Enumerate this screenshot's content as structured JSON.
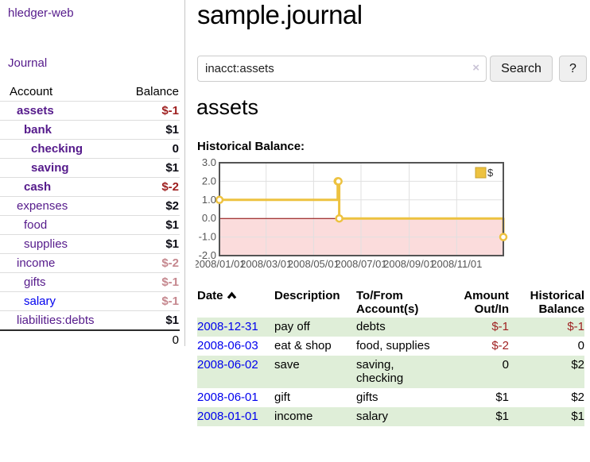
{
  "colors": {
    "purple": "#551A8B",
    "blue": "#0000EE",
    "negative_red": "#9E1F1F",
    "dimmed_red": "#C5878E",
    "stripe_green": "#DFEED8",
    "chart_line_yellow": "#EDC240",
    "chart_negative_fill": "#FBDCDC",
    "chart_zero_line": "#8B0000"
  },
  "sidebar": {
    "app_title": "hledger-web",
    "nav": {
      "journal_label": "Journal"
    },
    "accounts_table": {
      "account_header": "Account",
      "balance_header": "Balance",
      "rows": [
        {
          "name": "assets",
          "level": 1,
          "bold": true,
          "link_tone": "visited",
          "balance": "$-1",
          "balance_tone": "negative"
        },
        {
          "name": "bank",
          "level": 2,
          "bold": true,
          "link_tone": "visited",
          "balance": "$1",
          "balance_tone": "positive"
        },
        {
          "name": "checking",
          "level": 3,
          "bold": true,
          "link_tone": "visited",
          "balance": "0",
          "balance_tone": "positive"
        },
        {
          "name": "saving",
          "level": 3,
          "bold": true,
          "link_tone": "visited",
          "balance": "$1",
          "balance_tone": "positive"
        },
        {
          "name": "cash",
          "level": 2,
          "bold": true,
          "link_tone": "visited",
          "balance": "$-2",
          "balance_tone": "negative"
        },
        {
          "name": "expenses",
          "level": 1,
          "bold": false,
          "link_tone": "visited",
          "balance": "$2",
          "balance_tone": "positive"
        },
        {
          "name": "food",
          "level": 2,
          "bold": false,
          "link_tone": "visited",
          "balance": "$1",
          "balance_tone": "positive"
        },
        {
          "name": "supplies",
          "level": 2,
          "bold": false,
          "link_tone": "visited",
          "balance": "$1",
          "balance_tone": "positive"
        },
        {
          "name": "income",
          "level": 1,
          "bold": false,
          "link_tone": "visited",
          "balance": "$-2",
          "balance_tone": "dimmed"
        },
        {
          "name": "gifts",
          "level": 2,
          "bold": false,
          "link_tone": "visited",
          "balance": "$-1",
          "balance_tone": "dimmed"
        },
        {
          "name": "salary",
          "level": 2,
          "bold": false,
          "link_tone": "unvisited",
          "balance": "$-1",
          "balance_tone": "dimmed"
        },
        {
          "name": "liabilities:debts",
          "level": 1,
          "bold": false,
          "link_tone": "visited",
          "balance": "$1",
          "balance_tone": "positive"
        }
      ],
      "total": "0"
    }
  },
  "main": {
    "title": "sample.journal",
    "search": {
      "value": "inacct:assets",
      "clear_icon": "×",
      "button_label": "Search",
      "help_label": "?"
    },
    "account_heading": "assets",
    "chart_label": "Historical Balance:",
    "chart_data": {
      "type": "line",
      "step": true,
      "title": "Historical Balance:",
      "series": [
        {
          "name": "$",
          "color": "#EDC240",
          "points": [
            [
              "2008-01-01",
              1
            ],
            [
              "2008-06-01",
              2
            ],
            [
              "2008-06-02",
              2
            ],
            [
              "2008-06-03",
              0
            ],
            [
              "2008-12-31",
              -1
            ]
          ]
        }
      ],
      "xlim": [
        "2008-01-01",
        "2008-12-31"
      ],
      "ylim": [
        -2,
        3
      ],
      "yticks": [
        3,
        2,
        1,
        0,
        -1,
        -2
      ],
      "ytick_labels": [
        "3.0",
        "2.0",
        "1.0",
        "0.0",
        "-1.0",
        "-2.0"
      ],
      "xtick_labels": [
        "2008/01/01",
        "2008/03/01",
        "2008/05/01",
        "2008/07/01",
        "2008/09/01",
        "2008/11/01"
      ],
      "grid": true,
      "legend_label": "$",
      "legend_position": "top-right",
      "negative_region_fill": "#FBDCDC",
      "zero_line_color": "#8B0000"
    },
    "transactions": {
      "headers": {
        "date": "Date",
        "description": "Description",
        "accounts": "To/From Account(s)",
        "amount": "Amount Out/In",
        "balance": "Historical Balance"
      },
      "rows": [
        {
          "date": "2008-12-31",
          "description": "pay off",
          "accounts": "debts",
          "amount": "$-1",
          "amount_tone": "negative",
          "balance": "$-1",
          "balance_tone": "negative",
          "shaded": true
        },
        {
          "date": "2008-06-03",
          "description": "eat & shop",
          "accounts": "food, supplies",
          "amount": "$-2",
          "amount_tone": "negative",
          "balance": "0",
          "balance_tone": "plain",
          "shaded": false
        },
        {
          "date": "2008-06-02",
          "description": "save",
          "accounts": "saving, checking",
          "amount": "0",
          "amount_tone": "plain",
          "balance": "$2",
          "balance_tone": "plain",
          "shaded": true
        },
        {
          "date": "2008-06-01",
          "description": "gift",
          "accounts": "gifts",
          "amount": "$1",
          "amount_tone": "plain",
          "balance": "$2",
          "balance_tone": "plain",
          "shaded": false
        },
        {
          "date": "2008-01-01",
          "description": "income",
          "accounts": "salary",
          "amount": "$1",
          "amount_tone": "plain",
          "balance": "$1",
          "balance_tone": "plain",
          "shaded": true
        }
      ]
    }
  }
}
